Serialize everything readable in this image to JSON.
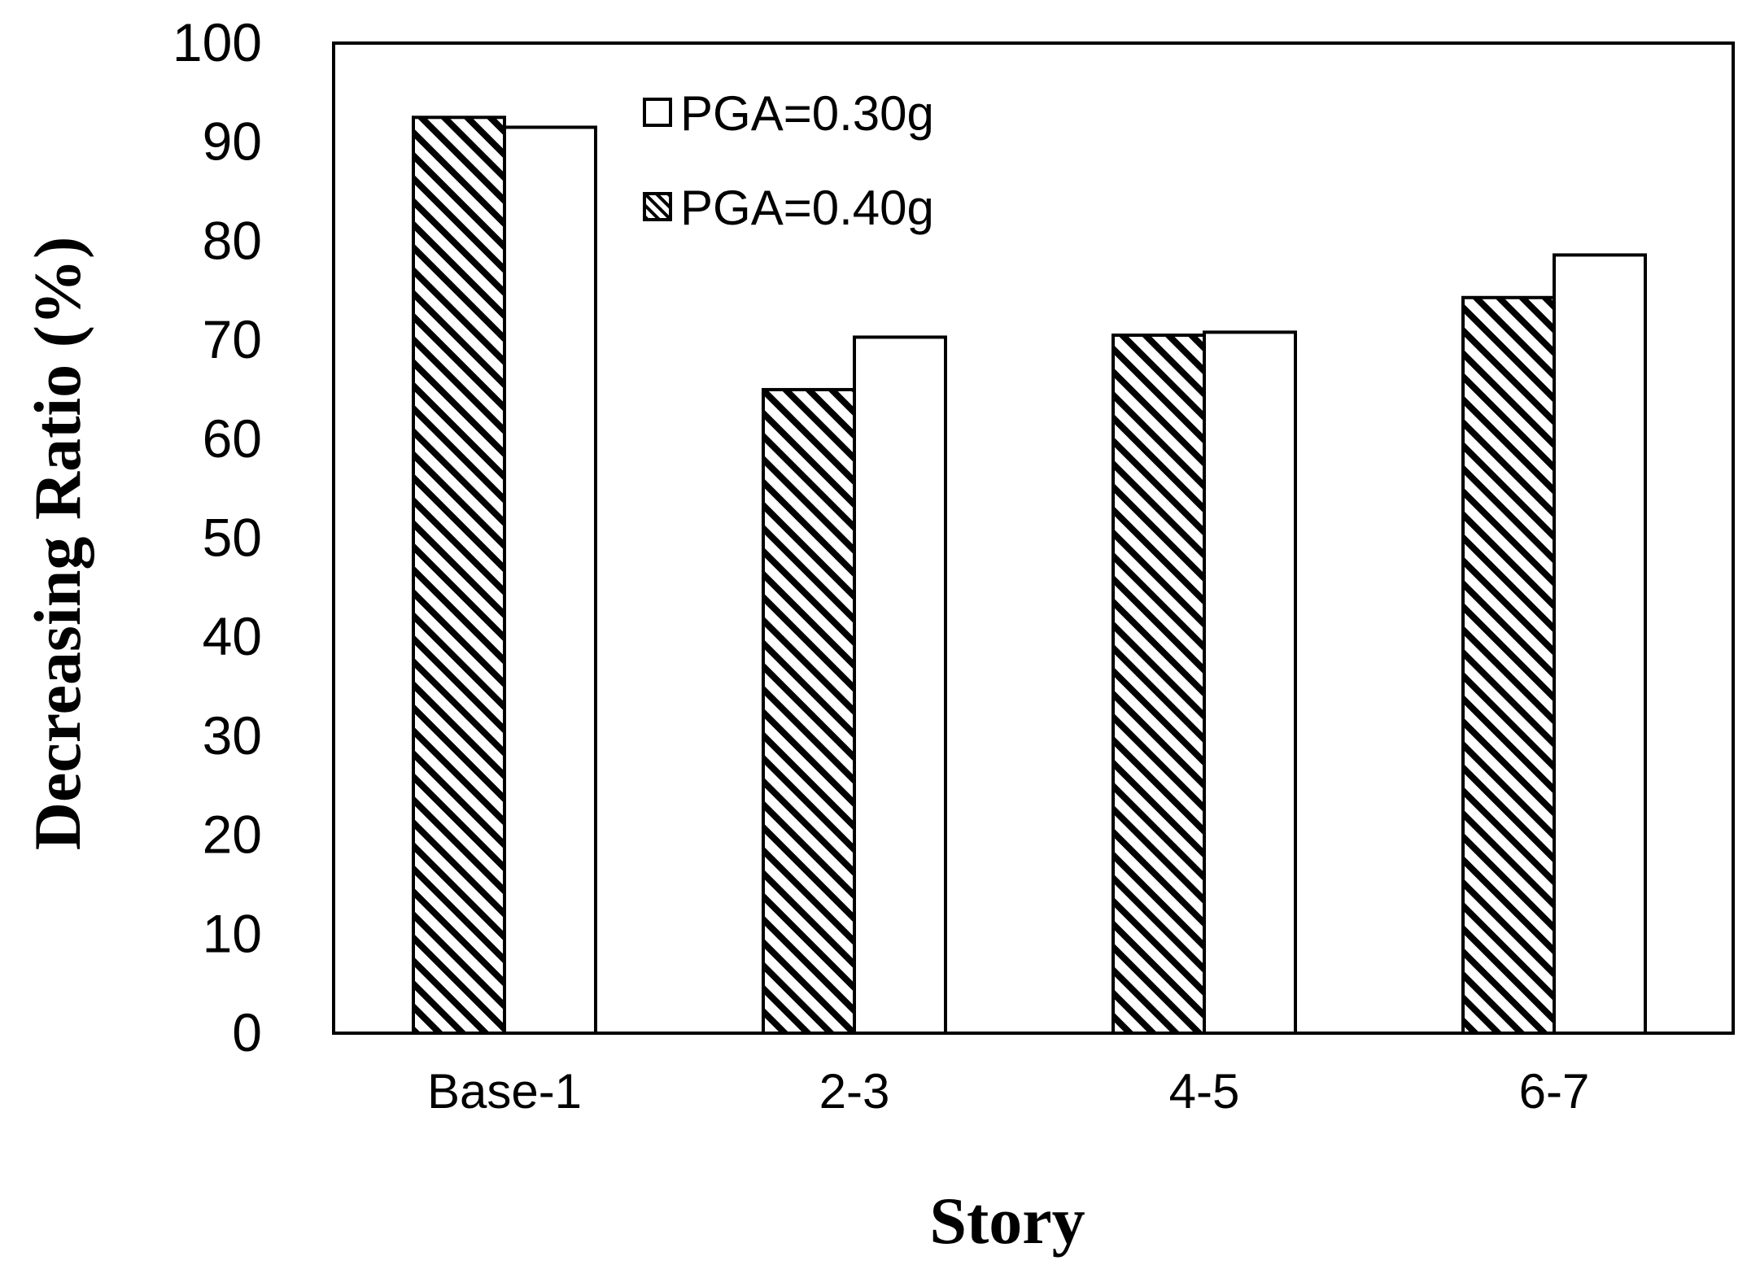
{
  "chart_data": {
    "type": "bar",
    "categories": [
      "Base-1",
      "2-3",
      "4-5",
      "6-7"
    ],
    "series": [
      {
        "name": "PGA=0.40g",
        "pattern": "hatched",
        "values": [
          92.5,
          65.0,
          70.5,
          74.3
        ]
      },
      {
        "name": "PGA=0.30g",
        "pattern": "solid-white",
        "values": [
          91.5,
          70.3,
          70.8,
          78.6
        ]
      }
    ],
    "xlabel": "Story",
    "ylabel": "Decreasing Ratio (%)",
    "ylim": [
      0,
      100
    ],
    "yticks": [
      0,
      10,
      20,
      30,
      40,
      50,
      60,
      70,
      80,
      90,
      100
    ],
    "legend": {
      "placement": "top-center",
      "entries": [
        {
          "label": "PGA=0.30g",
          "pattern": "solid-white"
        },
        {
          "label": "PGA=0.40g",
          "pattern": "hatched"
        }
      ]
    },
    "grid": false,
    "colors": {
      "stroke": "#000000",
      "fill": "#ffffff"
    }
  }
}
